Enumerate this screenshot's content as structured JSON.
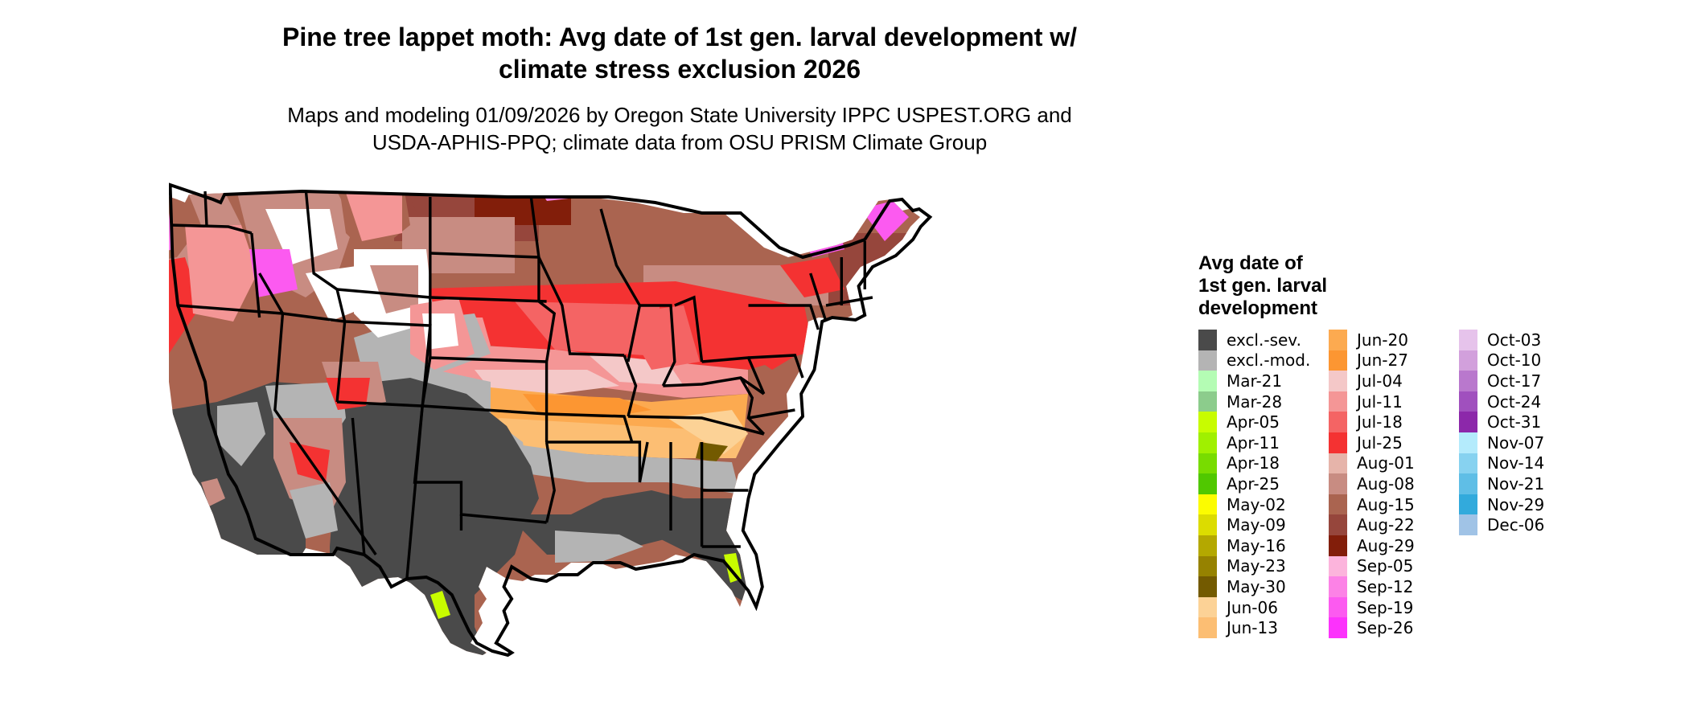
{
  "title_lines": [
    "Pine tree lappet moth: Avg date of 1st gen. larval development w/",
    "climate stress exclusion 2026"
  ],
  "subtitle_lines": [
    "Maps and modeling 01/09/2026 by Oregon State University IPPC USPEST.ORG and",
    "USDA-APHIS-PPQ; climate data from OSU PRISM Climate Group"
  ],
  "legend": {
    "title_lines": [
      "Avg date of",
      "1st gen. larval",
      "development"
    ],
    "columns": [
      [
        {
          "label": "excl.-sev.",
          "color": "#4a4a4a"
        },
        {
          "label": "excl.-mod.",
          "color": "#b4b4b4"
        },
        {
          "label": "Mar-21",
          "color": "#b4fcb4"
        },
        {
          "label": "Mar-28",
          "color": "#8ccc8c"
        },
        {
          "label": "Apr-05",
          "color": "#c8fc00"
        },
        {
          "label": "Apr-11",
          "color": "#a0f000"
        },
        {
          "label": "Apr-18",
          "color": "#78dc00"
        },
        {
          "label": "Apr-25",
          "color": "#50c800"
        },
        {
          "label": "May-02",
          "color": "#fcfc00"
        },
        {
          "label": "May-09",
          "color": "#dcdc00"
        },
        {
          "label": "May-16",
          "color": "#b4a800"
        },
        {
          "label": "May-23",
          "color": "#968200"
        },
        {
          "label": "May-30",
          "color": "#735a00"
        },
        {
          "label": "Jun-06",
          "color": "#fcd296"
        },
        {
          "label": "Jun-13",
          "color": "#fcbe73"
        }
      ],
      [
        {
          "label": "Jun-20",
          "color": "#fcaa50"
        },
        {
          "label": "Jun-27",
          "color": "#fc9632"
        },
        {
          "label": "Jul-04",
          "color": "#f4c8c8"
        },
        {
          "label": "Jul-11",
          "color": "#f49696"
        },
        {
          "label": "Jul-18",
          "color": "#f46464"
        },
        {
          "label": "Jul-25",
          "color": "#f43232"
        },
        {
          "label": "Aug-01",
          "color": "#e6b4aa"
        },
        {
          "label": "Aug-08",
          "color": "#c88c82"
        },
        {
          "label": "Aug-15",
          "color": "#aa6450"
        },
        {
          "label": "Aug-22",
          "color": "#96463c"
        },
        {
          "label": "Aug-29",
          "color": "#821e0a"
        },
        {
          "label": "Sep-05",
          "color": "#fcb4dc"
        },
        {
          "label": "Sep-12",
          "color": "#fc82e6"
        },
        {
          "label": "Sep-19",
          "color": "#fc5af0"
        },
        {
          "label": "Sep-26",
          "color": "#fc32fc"
        }
      ],
      [
        {
          "label": "Oct-03",
          "color": "#e6c3eb"
        },
        {
          "label": "Oct-10",
          "color": "#d2a0dc"
        },
        {
          "label": "Oct-17",
          "color": "#b978cd"
        },
        {
          "label": "Oct-24",
          "color": "#a050be"
        },
        {
          "label": "Oct-31",
          "color": "#8c28aa"
        },
        {
          "label": "Nov-07",
          "color": "#b4ebfc"
        },
        {
          "label": "Nov-14",
          "color": "#87d2f0"
        },
        {
          "label": "Nov-21",
          "color": "#5fbee6"
        },
        {
          "label": "Nov-29",
          "color": "#32aadc"
        },
        {
          "label": "Dec-06",
          "color": "#a0c3e6"
        }
      ]
    ]
  },
  "map_colors": {
    "severe_exclusion": "#4a4a4a",
    "moderate_exclusion": "#b4b4b4",
    "no_data": "#ffffff",
    "border": "#000000"
  }
}
